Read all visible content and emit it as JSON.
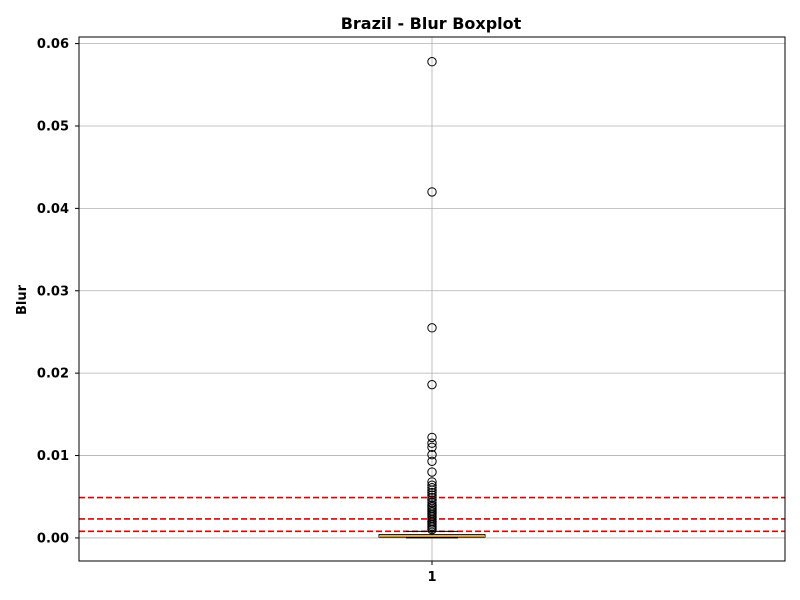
{
  "chart_data": {
    "type": "boxplot",
    "title": "Brazil - Blur Boxplot",
    "xlabel": "",
    "ylabel": "Blur",
    "ylim": [
      -0.0028,
      0.0608
    ],
    "yticks": [
      0.0,
      0.01,
      0.02,
      0.03,
      0.04,
      0.05,
      0.06
    ],
    "ytick_labels": [
      "0.00",
      "0.01",
      "0.02",
      "0.03",
      "0.04",
      "0.05",
      "0.06"
    ],
    "categories": [
      "1"
    ],
    "grid": true,
    "box": {
      "position": 1,
      "whisker_low": 0.0,
      "q1": 0.0001,
      "median": 0.0002,
      "q3": 0.0004,
      "whisker_high": 0.0008
    },
    "outliers": [
      0.0578,
      0.042,
      0.0255,
      0.0186,
      0.0122,
      0.0115,
      0.011,
      0.0101,
      0.0093,
      0.008,
      0.0068,
      0.0064,
      0.0061,
      0.0058,
      0.0055,
      0.0052,
      0.0049,
      0.0046,
      0.0043,
      0.004,
      0.0038,
      0.0036,
      0.0034,
      0.0032,
      0.003,
      0.0028,
      0.0026,
      0.0024,
      0.0022,
      0.002,
      0.0018,
      0.0016,
      0.0014,
      0.0012,
      0.001
    ],
    "reference_lines": [
      {
        "y": 0.0049,
        "color": "#dd0000",
        "style": "dashed"
      },
      {
        "y": 0.0023,
        "color": "#dd0000",
        "style": "dashed"
      },
      {
        "y": 0.0008,
        "color": "#dd0000",
        "style": "dashed"
      }
    ],
    "colors": {
      "median": "#e69500",
      "box": "#000000",
      "grid": "#b0b0b0",
      "reference": "#dd0000"
    }
  }
}
